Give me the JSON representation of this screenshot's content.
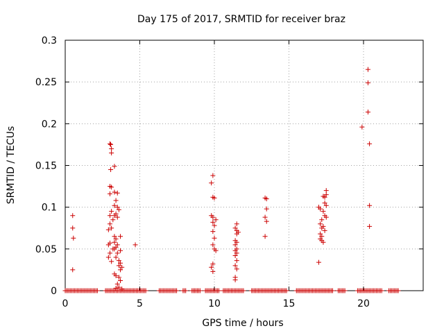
{
  "chart_data": {
    "type": "scatter",
    "title": "Day 175 of 2017, SRMTID for receiver braz",
    "xlabel": "GPS time / hours",
    "ylabel": "SRMTID / TECUs",
    "xlim": [
      0,
      24
    ],
    "ylim": [
      0,
      0.3
    ],
    "grid": true,
    "marker": "+",
    "color": "#cc0000",
    "x_ticks": [
      0,
      5,
      10,
      15,
      20
    ],
    "x_tick_labels": [
      "0",
      "5",
      "10",
      "15",
      "20"
    ],
    "y_ticks": [
      0,
      0.05,
      0.1,
      0.15,
      0.2,
      0.25,
      0.3
    ],
    "y_tick_labels": [
      "0",
      "0.05",
      "0.1",
      "0.15",
      "0.2",
      "0.25",
      "0.3"
    ],
    "series": [
      {
        "name": "SRMTID",
        "points": [
          [
            0.5,
            0.09
          ],
          [
            0.5,
            0.075
          ],
          [
            0.55,
            0.063
          ],
          [
            0.5,
            0.025
          ],
          [
            3.0,
            0.176
          ],
          [
            3.05,
            0.175
          ],
          [
            3.1,
            0.17
          ],
          [
            3.1,
            0.165
          ],
          [
            3.05,
            0.145
          ],
          [
            3.0,
            0.125
          ],
          [
            3.1,
            0.124
          ],
          [
            3.0,
            0.116
          ],
          [
            3.1,
            0.095
          ],
          [
            3.0,
            0.09
          ],
          [
            3.2,
            0.085
          ],
          [
            3.0,
            0.08
          ],
          [
            3.1,
            0.075
          ],
          [
            2.9,
            0.073
          ],
          [
            3.0,
            0.057
          ],
          [
            2.9,
            0.055
          ],
          [
            3.2,
            0.05
          ],
          [
            3.0,
            0.045
          ],
          [
            2.9,
            0.04
          ],
          [
            3.1,
            0.035
          ],
          [
            3.3,
            0.149
          ],
          [
            3.3,
            0.118
          ],
          [
            3.5,
            0.117
          ],
          [
            3.4,
            0.108
          ],
          [
            3.3,
            0.102
          ],
          [
            3.5,
            0.1
          ],
          [
            3.6,
            0.097
          ],
          [
            3.4,
            0.092
          ],
          [
            3.3,
            0.09
          ],
          [
            3.5,
            0.088
          ],
          [
            3.7,
            0.065
          ],
          [
            3.3,
            0.065
          ],
          [
            3.4,
            0.062
          ],
          [
            3.3,
            0.058
          ],
          [
            3.5,
            0.055
          ],
          [
            3.4,
            0.052
          ],
          [
            3.3,
            0.05
          ],
          [
            3.7,
            0.048
          ],
          [
            3.5,
            0.045
          ],
          [
            3.4,
            0.04
          ],
          [
            3.6,
            0.036
          ],
          [
            3.7,
            0.033
          ],
          [
            3.6,
            0.03
          ],
          [
            3.8,
            0.028
          ],
          [
            3.7,
            0.025
          ],
          [
            3.3,
            0.02
          ],
          [
            3.4,
            0.018
          ],
          [
            3.6,
            0.016
          ],
          [
            3.7,
            0.012
          ],
          [
            3.5,
            0.008
          ],
          [
            3.6,
            0.004
          ],
          [
            3.4,
            0.003
          ],
          [
            3.8,
            0.002
          ],
          [
            4.7,
            0.055
          ],
          [
            9.8,
            0.129
          ],
          [
            9.9,
            0.138
          ],
          [
            9.9,
            0.112
          ],
          [
            10.0,
            0.111
          ],
          [
            9.8,
            0.09
          ],
          [
            9.9,
            0.088
          ],
          [
            10.1,
            0.085
          ],
          [
            9.9,
            0.082
          ],
          [
            10.0,
            0.078
          ],
          [
            9.9,
            0.071
          ],
          [
            10.0,
            0.063
          ],
          [
            9.9,
            0.055
          ],
          [
            10.0,
            0.05
          ],
          [
            10.1,
            0.048
          ],
          [
            9.9,
            0.032
          ],
          [
            9.8,
            0.028
          ],
          [
            9.9,
            0.023
          ],
          [
            11.5,
            0.08
          ],
          [
            11.4,
            0.075
          ],
          [
            11.5,
            0.072
          ],
          [
            11.6,
            0.07
          ],
          [
            11.5,
            0.068
          ],
          [
            11.4,
            0.06
          ],
          [
            11.5,
            0.058
          ],
          [
            11.4,
            0.055
          ],
          [
            11.5,
            0.05
          ],
          [
            11.4,
            0.048
          ],
          [
            11.5,
            0.045
          ],
          [
            11.4,
            0.042
          ],
          [
            11.5,
            0.036
          ],
          [
            11.4,
            0.03
          ],
          [
            11.5,
            0.026
          ],
          [
            11.4,
            0.016
          ],
          [
            11.4,
            0.013
          ],
          [
            13.4,
            0.111
          ],
          [
            13.5,
            0.11
          ],
          [
            13.5,
            0.098
          ],
          [
            13.4,
            0.088
          ],
          [
            13.5,
            0.083
          ],
          [
            13.4,
            0.065
          ],
          [
            17.0,
            0.1
          ],
          [
            17.1,
            0.098
          ],
          [
            17.3,
            0.113
          ],
          [
            17.4,
            0.112
          ],
          [
            17.5,
            0.12
          ],
          [
            17.5,
            0.115
          ],
          [
            17.4,
            0.105
          ],
          [
            17.5,
            0.102
          ],
          [
            17.3,
            0.095
          ],
          [
            17.4,
            0.09
          ],
          [
            17.5,
            0.088
          ],
          [
            17.2,
            0.085
          ],
          [
            17.1,
            0.08
          ],
          [
            17.3,
            0.077
          ],
          [
            17.2,
            0.075
          ],
          [
            17.4,
            0.072
          ],
          [
            17.1,
            0.068
          ],
          [
            17.2,
            0.065
          ],
          [
            17.1,
            0.062
          ],
          [
            17.2,
            0.06
          ],
          [
            17.3,
            0.058
          ],
          [
            17.0,
            0.034
          ],
          [
            20.3,
            0.265
          ],
          [
            20.3,
            0.249
          ],
          [
            20.3,
            0.214
          ],
          [
            19.9,
            0.196
          ],
          [
            20.4,
            0.176
          ],
          [
            20.4,
            0.102
          ],
          [
            20.4,
            0.077
          ]
        ],
        "zero_ranges": [
          [
            0.0,
            2.2
          ],
          [
            2.7,
            5.4
          ],
          [
            6.3,
            7.5
          ],
          [
            7.9,
            8.1
          ],
          [
            8.5,
            9.1
          ],
          [
            9.4,
            10.3
          ],
          [
            10.6,
            12.0
          ],
          [
            12.5,
            14.9
          ],
          [
            15.5,
            18.0
          ],
          [
            18.3,
            18.8
          ],
          [
            19.6,
            21.3
          ],
          [
            21.7,
            22.4
          ]
        ],
        "zero_step": 0.09
      }
    ]
  }
}
